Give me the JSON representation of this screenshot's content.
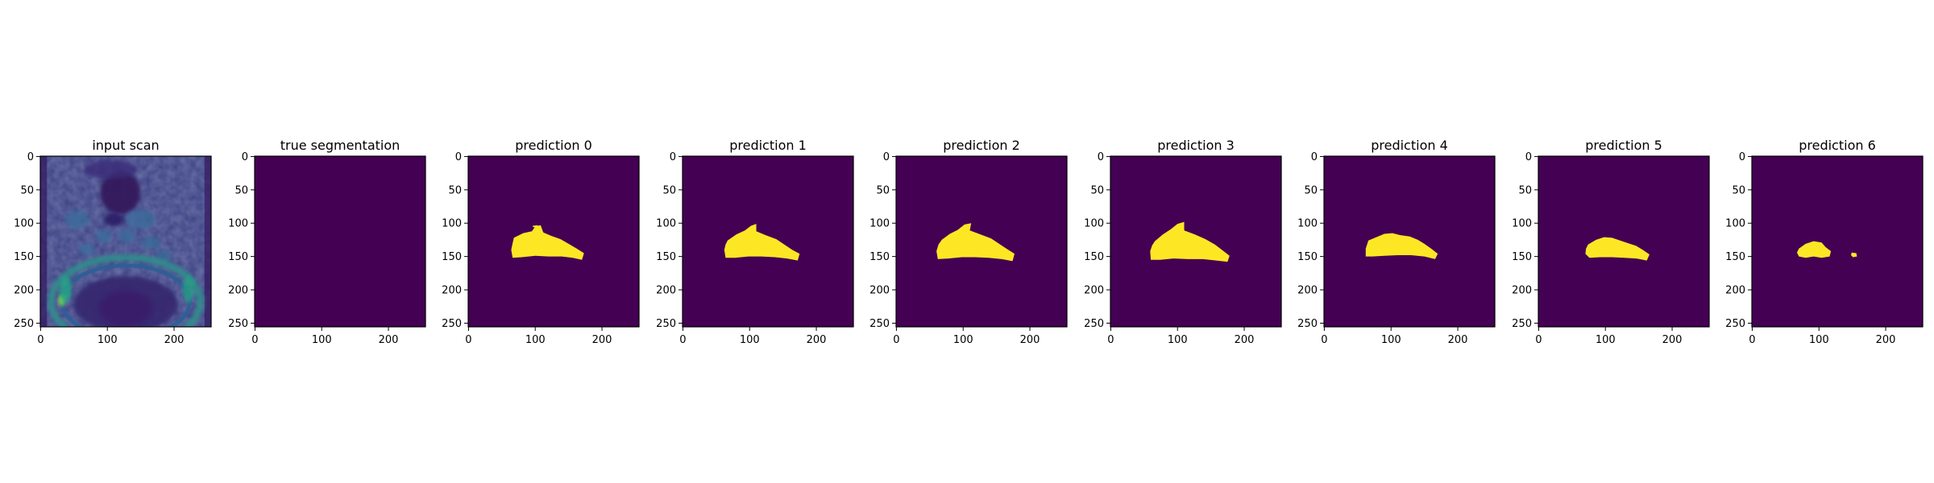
{
  "figure": {
    "panel_count": 9
  },
  "chart_data": [
    {
      "type": "heatmap",
      "title": "input scan",
      "content": "mri-scan",
      "xlim": [
        0,
        255
      ],
      "ylim": [
        255,
        0
      ],
      "xticks": [
        0,
        100,
        200
      ],
      "yticks": [
        0,
        50,
        100,
        150,
        200,
        250
      ],
      "colormap": "viridis",
      "grid": false
    },
    {
      "type": "heatmap",
      "title": "true segmentation",
      "content": "empty-mask",
      "xlim": [
        0,
        255
      ],
      "ylim": [
        255,
        0
      ],
      "xticks": [
        0,
        100,
        200
      ],
      "yticks": [
        0,
        50,
        100,
        150,
        200,
        250
      ],
      "colormap": "viridis",
      "grid": false,
      "mask_polygons": []
    },
    {
      "type": "heatmap",
      "title": "prediction 0",
      "content": "mask",
      "xlim": [
        0,
        255
      ],
      "ylim": [
        255,
        0
      ],
      "xticks": [
        0,
        100,
        200
      ],
      "yticks": [
        0,
        50,
        100,
        150,
        200,
        250
      ],
      "colormap": "viridis",
      "grid": false,
      "mask_polygons": [
        [
          [
            68,
            122
          ],
          [
            82,
            115
          ],
          [
            95,
            112
          ],
          [
            100,
            105
          ],
          [
            108,
            103
          ],
          [
            112,
            114
          ],
          [
            124,
            119
          ],
          [
            138,
            124
          ],
          [
            150,
            131
          ],
          [
            162,
            138
          ],
          [
            173,
            145
          ],
          [
            170,
            155
          ],
          [
            156,
            152
          ],
          [
            140,
            150
          ],
          [
            120,
            150
          ],
          [
            100,
            149
          ],
          [
            80,
            151
          ],
          [
            66,
            152
          ],
          [
            64,
            140
          ],
          [
            66,
            130
          ]
        ],
        [
          [
            96,
            104
          ],
          [
            104,
            103
          ],
          [
            104,
            106
          ],
          [
            97,
            106
          ]
        ]
      ]
    },
    {
      "type": "heatmap",
      "title": "prediction 1",
      "content": "mask",
      "xlim": [
        0,
        255
      ],
      "ylim": [
        255,
        0
      ],
      "xticks": [
        0,
        100,
        200
      ],
      "yticks": [
        0,
        50,
        100,
        150,
        200,
        250
      ],
      "colormap": "viridis",
      "grid": false,
      "mask_polygons": [
        [
          [
            67,
            126
          ],
          [
            80,
            117
          ],
          [
            93,
            111
          ],
          [
            102,
            104
          ],
          [
            110,
            101
          ],
          [
            110,
            112
          ],
          [
            124,
            118
          ],
          [
            140,
            124
          ],
          [
            152,
            132
          ],
          [
            164,
            140
          ],
          [
            175,
            146
          ],
          [
            172,
            156
          ],
          [
            156,
            153
          ],
          [
            138,
            151
          ],
          [
            118,
            150
          ],
          [
            98,
            150
          ],
          [
            78,
            152
          ],
          [
            64,
            152
          ],
          [
            62,
            140
          ],
          [
            64,
            132
          ]
        ]
      ]
    },
    {
      "type": "heatmap",
      "title": "prediction 2",
      "content": "mask",
      "xlim": [
        0,
        255
      ],
      "ylim": [
        255,
        0
      ],
      "xticks": [
        0,
        100,
        200
      ],
      "yticks": [
        0,
        50,
        100,
        150,
        200,
        250
      ],
      "colormap": "viridis",
      "grid": false,
      "mask_polygons": [
        [
          [
            68,
            125
          ],
          [
            80,
            116
          ],
          [
            92,
            110
          ],
          [
            102,
            102
          ],
          [
            112,
            100
          ],
          [
            110,
            111
          ],
          [
            126,
            117
          ],
          [
            142,
            123
          ],
          [
            154,
            131
          ],
          [
            166,
            139
          ],
          [
            177,
            146
          ],
          [
            174,
            157
          ],
          [
            158,
            154
          ],
          [
            138,
            152
          ],
          [
            118,
            151
          ],
          [
            98,
            151
          ],
          [
            78,
            153
          ],
          [
            62,
            154
          ],
          [
            60,
            142
          ],
          [
            63,
            132
          ]
        ]
      ]
    },
    {
      "type": "heatmap",
      "title": "prediction 3",
      "content": "mask",
      "xlim": [
        0,
        255
      ],
      "ylim": [
        255,
        0
      ],
      "xticks": [
        0,
        100,
        200
      ],
      "yticks": [
        0,
        50,
        100,
        150,
        200,
        250
      ],
      "colormap": "viridis",
      "grid": false,
      "mask_polygons": [
        [
          [
            66,
            127
          ],
          [
            78,
            117
          ],
          [
            90,
            109
          ],
          [
            100,
            101
          ],
          [
            110,
            98
          ],
          [
            110,
            111
          ],
          [
            126,
            117
          ],
          [
            142,
            124
          ],
          [
            156,
            132
          ],
          [
            168,
            141
          ],
          [
            178,
            149
          ],
          [
            175,
            158
          ],
          [
            158,
            156
          ],
          [
            138,
            154
          ],
          [
            116,
            154
          ],
          [
            94,
            153
          ],
          [
            74,
            155
          ],
          [
            60,
            155
          ],
          [
            59,
            142
          ],
          [
            62,
            133
          ]
        ]
      ]
    },
    {
      "type": "heatmap",
      "title": "prediction 4",
      "content": "mask",
      "xlim": [
        0,
        255
      ],
      "ylim": [
        255,
        0
      ],
      "xticks": [
        0,
        100,
        200
      ],
      "yticks": [
        0,
        50,
        100,
        150,
        200,
        250
      ],
      "colormap": "viridis",
      "grid": false,
      "mask_polygons": [
        [
          [
            66,
            126
          ],
          [
            78,
            121
          ],
          [
            90,
            116
          ],
          [
            102,
            115
          ],
          [
            114,
            118
          ],
          [
            128,
            120
          ],
          [
            140,
            125
          ],
          [
            150,
            131
          ],
          [
            160,
            138
          ],
          [
            170,
            146
          ],
          [
            166,
            154
          ],
          [
            150,
            150
          ],
          [
            130,
            148
          ],
          [
            110,
            148
          ],
          [
            90,
            149
          ],
          [
            72,
            150
          ],
          [
            62,
            150
          ],
          [
            62,
            138
          ]
        ]
      ]
    },
    {
      "type": "heatmap",
      "title": "prediction 5",
      "content": "mask",
      "xlim": [
        0,
        255
      ],
      "ylim": [
        255,
        0
      ],
      "xticks": [
        0,
        100,
        200
      ],
      "yticks": [
        0,
        50,
        100,
        150,
        200,
        250
      ],
      "colormap": "viridis",
      "grid": false,
      "mask_polygons": [
        [
          [
            74,
            132
          ],
          [
            86,
            125
          ],
          [
            98,
            121
          ],
          [
            110,
            122
          ],
          [
            122,
            126
          ],
          [
            134,
            130
          ],
          [
            146,
            134
          ],
          [
            156,
            140
          ],
          [
            166,
            147
          ],
          [
            162,
            156
          ],
          [
            146,
            153
          ],
          [
            128,
            152
          ],
          [
            110,
            151
          ],
          [
            92,
            151
          ],
          [
            76,
            152
          ],
          [
            70,
            146
          ],
          [
            71,
            138
          ]
        ]
      ]
    },
    {
      "type": "heatmap",
      "title": "prediction 6",
      "content": "mask",
      "xlim": [
        0,
        255
      ],
      "ylim": [
        255,
        0
      ],
      "xticks": [
        0,
        100,
        200
      ],
      "yticks": [
        0,
        50,
        100,
        150,
        200,
        250
      ],
      "colormap": "viridis",
      "grid": false,
      "mask_polygons": [
        [
          [
            70,
            138
          ],
          [
            80,
            131
          ],
          [
            92,
            127
          ],
          [
            104,
            129
          ],
          [
            110,
            136
          ],
          [
            118,
            142
          ],
          [
            116,
            150
          ],
          [
            104,
            152
          ],
          [
            92,
            150
          ],
          [
            80,
            152
          ],
          [
            70,
            150
          ],
          [
            67,
            144
          ]
        ],
        [
          [
            149,
            144
          ],
          [
            156,
            145
          ],
          [
            157,
            150
          ],
          [
            151,
            151
          ],
          [
            148,
            148
          ]
        ]
      ]
    }
  ],
  "colors": {
    "background_dark": "#440154",
    "mask_yellow": "#fde725",
    "axis": "#000000"
  }
}
